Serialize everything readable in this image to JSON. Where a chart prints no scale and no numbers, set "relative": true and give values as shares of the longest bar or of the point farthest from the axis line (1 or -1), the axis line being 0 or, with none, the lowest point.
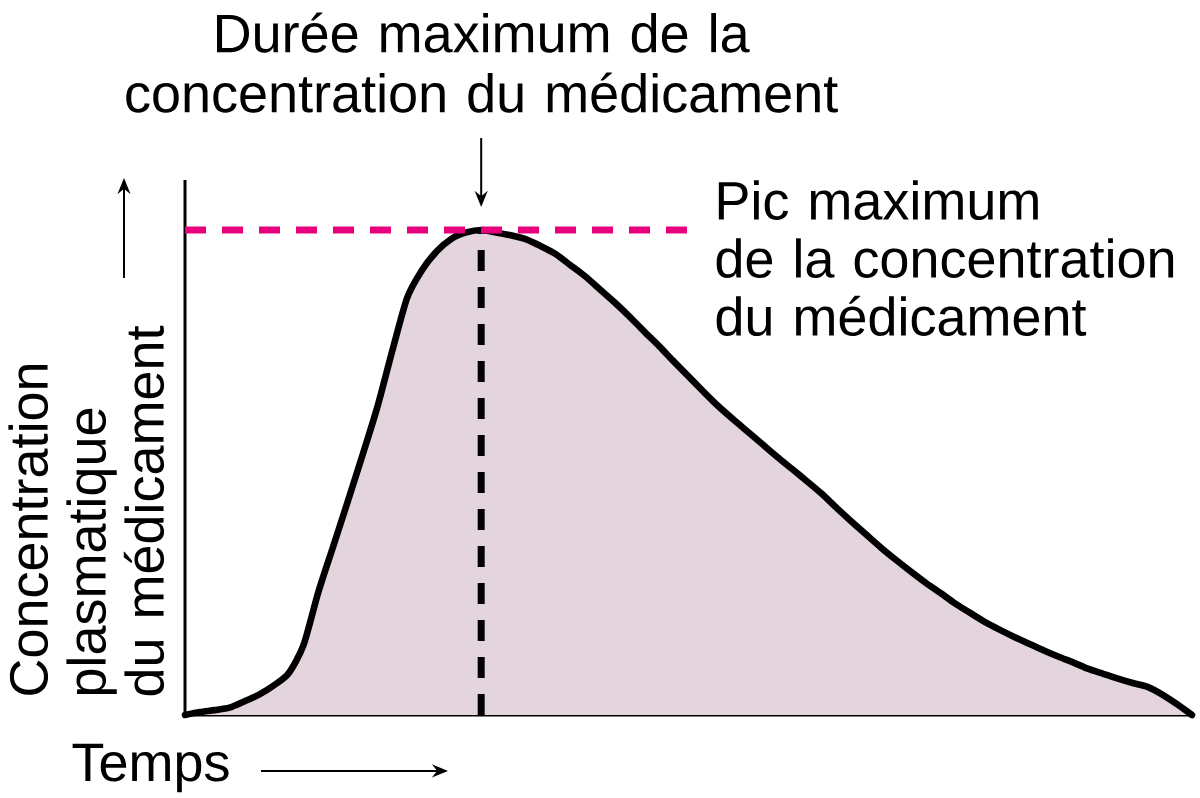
{
  "chart_data": {
    "type": "area",
    "relative": true,
    "tick_labels": false,
    "xlabel": "Temps",
    "ylabel": "Concentration plasmatique du médicament",
    "annotations": [
      "Durée maximum de la concentration du médicament"
    ],
    "categories": [
      null,
      null,
      null,
      null,
      null,
      null,
      null,
      null,
      null,
      null,
      null,
      null,
      null,
      null,
      null,
      null,
      null,
      null,
      null,
      null,
      null,
      null,
      null,
      null,
      null,
      null,
      null,
      null,
      null,
      null,
      null,
      null,
      null,
      null,
      null,
      null,
      null,
      null,
      null,
      null,
      null,
      null,
      null,
      null,
      null,
      null,
      null,
      null,
      null,
      null,
      null,
      null,
      null,
      null,
      null,
      null,
      null,
      null,
      null,
      null,
      null,
      null,
      null,
      null,
      null,
      null,
      null,
      null,
      null
    ],
    "color": "#e4d4de",
    "values": [
      0,
      0.006,
      0.01,
      0.015,
      0.028,
      0.042,
      0.061,
      0.086,
      0.144,
      0.253,
      0.347,
      0.441,
      0.537,
      0.636,
      0.751,
      0.86,
      0.917,
      0.956,
      0.982,
      0.995,
      1,
      0.995,
      0.989,
      0.981,
      0.967,
      0.951,
      0.928,
      0.905,
      0.878,
      0.851,
      0.822,
      0.791,
      0.761,
      0.729,
      0.698,
      0.667,
      0.637,
      0.61,
      0.584,
      0.558,
      0.532,
      0.507,
      0.482,
      0.456,
      0.427,
      0.399,
      0.372,
      0.345,
      0.32,
      0.296,
      0.273,
      0.252,
      0.23,
      0.211,
      0.192,
      0.176,
      0.161,
      0.147,
      0.133,
      0.12,
      0.108,
      0.095,
      0.085,
      0.075,
      0.066,
      0.058,
      0.042,
      0.022,
      0
    ],
    "ref_lines": [
      {
        "axis": "y",
        "value": 1,
        "label": "Pic maximum de la concentration du médicament",
        "color": "#e6007e",
        "line_style": "dashed"
      }
    ]
  }
}
